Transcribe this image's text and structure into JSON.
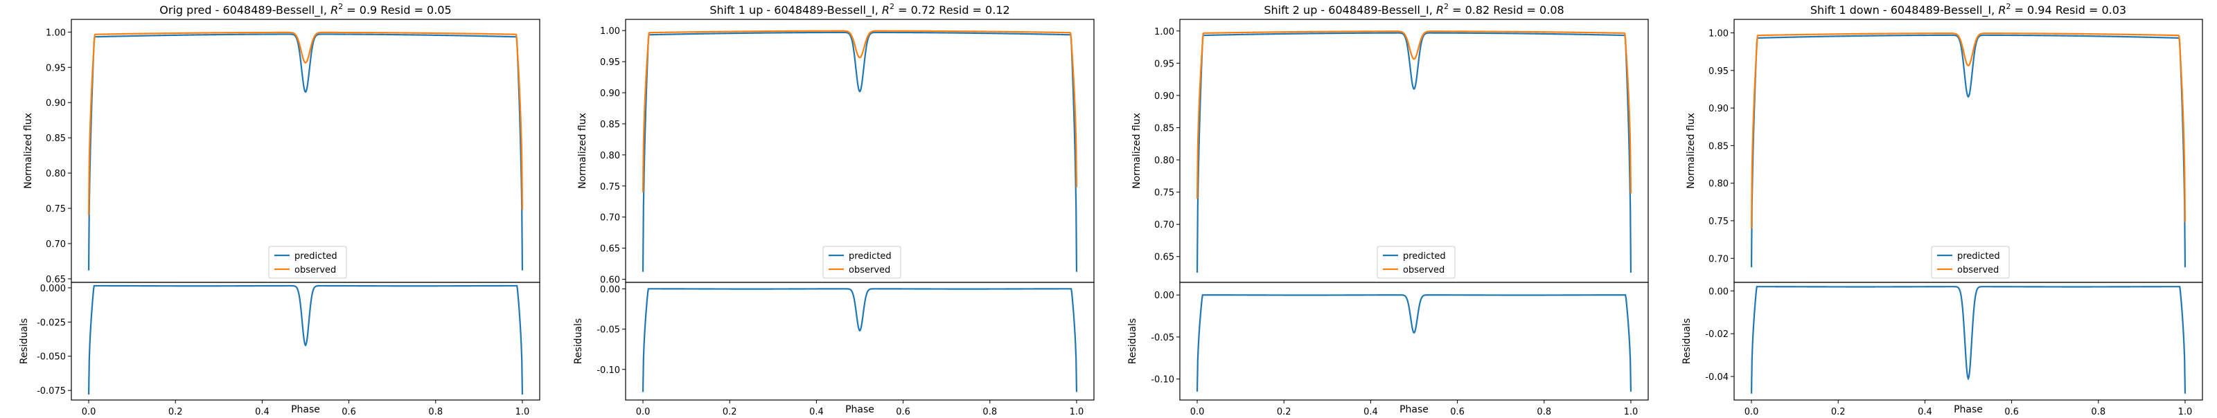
{
  "colors": {
    "predicted": "#1f77b4",
    "observed": "#ff7f0e"
  },
  "legend": {
    "predicted": "predicted",
    "observed": "observed"
  },
  "chart_data": [
    {
      "type": "line",
      "title": "Orig pred - 6048489-Bessell_I, $R^2 = 0.9$ Resid = 0.05",
      "title_parts": {
        "pre": "Orig pred - 6048489-Bessell_I, ",
        "r2_letter": "R",
        "r2_exp": "2",
        "post": " = 0.9 Resid = 0.05"
      },
      "xlabel": "Phase",
      "ylabel": "Normalized flux",
      "resid_ylabel": "Residuals",
      "xlim": [
        -0.04,
        1.04
      ],
      "xticks": [
        "0.0",
        "0.2",
        "0.4",
        "0.6",
        "0.8",
        "1.0"
      ],
      "ylim": [
        0.645,
        1.018
      ],
      "yticks": [
        "0.65",
        "0.70",
        "0.75",
        "0.80",
        "0.85",
        "0.90",
        "0.95",
        "1.00"
      ],
      "resid_ylim": [
        -0.082,
        0.004
      ],
      "resid_yticks": [
        "0.000",
        "-0.025",
        "-0.050",
        "-0.075"
      ],
      "legend_position": "lower center",
      "predicted": {
        "edge": 0.662,
        "plateau": 0.995,
        "dip": 0.913
      },
      "observed": {
        "edge": 0.74,
        "edge_end": 0.748,
        "plateau": 0.998,
        "dip": 0.955
      },
      "residual": {
        "edge": -0.078,
        "top": 0.0015,
        "dip": -0.042
      }
    },
    {
      "type": "line",
      "title": "Shift 1 up - 6048489-Bessell_I, $R^2 = 0.72$ Resid = 0.12",
      "title_parts": {
        "pre": "Shift 1 up - 6048489-Bessell_I, ",
        "r2_letter": "R",
        "r2_exp": "2",
        "post": " = 0.72 Resid = 0.12"
      },
      "xlabel": "Phase",
      "ylabel": "Normalized flux",
      "resid_ylabel": "Residuals",
      "xlim": [
        -0.04,
        1.04
      ],
      "xticks": [
        "0.0",
        "0.2",
        "0.4",
        "0.6",
        "0.8",
        "1.0"
      ],
      "ylim": [
        0.595,
        1.018
      ],
      "yticks": [
        "0.60",
        "0.65",
        "0.70",
        "0.75",
        "0.80",
        "0.85",
        "0.90",
        "0.95",
        "1.00"
      ],
      "resid_ylim": [
        -0.138,
        0.008
      ],
      "resid_yticks": [
        "0.00",
        "-0.05",
        "-0.10"
      ],
      "legend_position": "lower center",
      "predicted": {
        "edge": 0.612,
        "plateau": 0.995,
        "dip": 0.9
      },
      "observed": {
        "edge": 0.74,
        "edge_end": 0.748,
        "plateau": 0.998,
        "dip": 0.955
      },
      "residual": {
        "edge": -0.128,
        "top": 0.0,
        "dip": -0.052
      }
    },
    {
      "type": "line",
      "title": "Shift 2 up - 6048489-Bessell_I, $R^2 = 0.82$ Resid = 0.08",
      "title_parts": {
        "pre": "Shift 2 up - 6048489-Bessell_I, ",
        "r2_letter": "R",
        "r2_exp": "2",
        "post": " = 0.82 Resid = 0.08"
      },
      "xlabel": "Phase",
      "ylabel": "Normalized flux",
      "resid_ylabel": "Residuals",
      "xlim": [
        -0.04,
        1.04
      ],
      "xticks": [
        "0.0",
        "0.2",
        "0.4",
        "0.6",
        "0.8",
        "1.0"
      ],
      "ylim": [
        0.61,
        1.018
      ],
      "yticks": [
        "0.65",
        "0.70",
        "0.75",
        "0.80",
        "0.85",
        "0.90",
        "0.95",
        "1.00"
      ],
      "resid_ylim": [
        -0.125,
        0.015
      ],
      "resid_yticks": [
        "0.00",
        "-0.05",
        "-0.10"
      ],
      "legend_position": "lower center",
      "predicted": {
        "edge": 0.625,
        "plateau": 0.995,
        "dip": 0.908
      },
      "observed": {
        "edge": 0.74,
        "edge_end": 0.748,
        "plateau": 0.998,
        "dip": 0.955
      },
      "residual": {
        "edge": -0.115,
        "top": 0.0,
        "dip": -0.045
      }
    },
    {
      "type": "line",
      "title": "Shift 1 down - 6048489-Bessell_I, $R^2 = 0.94$ Resid = 0.03",
      "title_parts": {
        "pre": "Shift 1 down - 6048489-Bessell_I, ",
        "r2_letter": "R",
        "r2_exp": "2",
        "post": " = 0.94 Resid = 0.03"
      },
      "xlabel": "Phase",
      "ylabel": "Normalized flux",
      "resid_ylabel": "Residuals",
      "xlim": [
        -0.04,
        1.04
      ],
      "xticks": [
        "0.0",
        "0.2",
        "0.4",
        "0.6",
        "0.8",
        "1.0"
      ],
      "ylim": [
        0.668,
        1.018
      ],
      "yticks": [
        "0.70",
        "0.75",
        "0.80",
        "0.85",
        "0.90",
        "0.95",
        "1.00"
      ],
      "resid_ylim": [
        -0.051,
        0.004
      ],
      "resid_yticks": [
        "0.00",
        "-0.02",
        "-0.04"
      ],
      "legend_position": "lower center",
      "predicted": {
        "edge": 0.688,
        "plateau": 0.995,
        "dip": 0.913
      },
      "observed": {
        "edge": 0.74,
        "edge_end": 0.748,
        "plateau": 0.998,
        "dip": 0.955
      },
      "residual": {
        "edge": -0.048,
        "top": 0.002,
        "dip": -0.041
      }
    }
  ]
}
